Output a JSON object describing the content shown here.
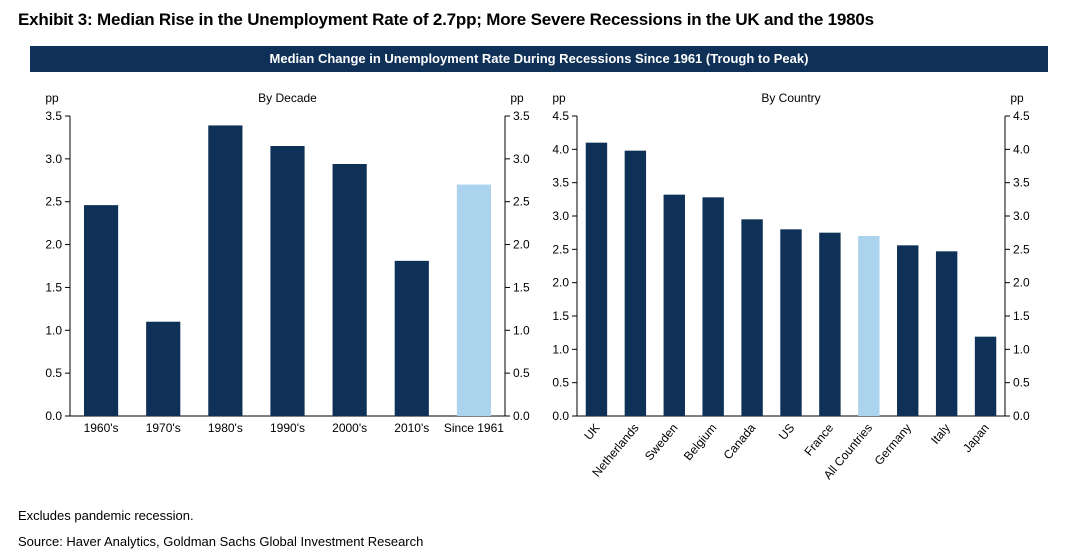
{
  "exhibit": {
    "title": "Exhibit 3: Median Rise in the Unemployment Rate of 2.7pp; More Severe Recessions in the UK and the 1980s",
    "banner": "Median Change in Unemployment Rate During Recessions Since 1961 (Trough to Peak)"
  },
  "colors": {
    "bar": "#0f3057",
    "highlight": "#acd3ee",
    "banner": "#0f3057"
  },
  "chart_data": [
    {
      "type": "bar",
      "title": "By Decade",
      "ylabel": "pp",
      "ylim": [
        0,
        3.5
      ],
      "yticks": [
        "0.0",
        "0.5",
        "1.0",
        "1.5",
        "2.0",
        "2.5",
        "3.0",
        "3.5"
      ],
      "categories": [
        "1960's",
        "1970's",
        "1980's",
        "1990's",
        "2000's",
        "2010's",
        "Since 1961"
      ],
      "values": [
        2.46,
        1.1,
        3.39,
        3.15,
        2.94,
        1.81,
        2.7
      ],
      "highlight": "Since 1961"
    },
    {
      "type": "bar",
      "title": "By Country",
      "ylabel": "pp",
      "ylim": [
        0,
        4.5
      ],
      "yticks": [
        "0.0",
        "0.5",
        "1.0",
        "1.5",
        "2.0",
        "2.5",
        "3.0",
        "3.5",
        "4.0",
        "4.5"
      ],
      "categories": [
        "UK",
        "Netherlands",
        "Sweden",
        "Belgium",
        "Canada",
        "US",
        "France",
        "All Countries",
        "Germany",
        "Italy",
        "Japan"
      ],
      "values": [
        4.1,
        3.98,
        3.32,
        3.28,
        2.95,
        2.8,
        2.75,
        2.7,
        2.56,
        2.47,
        1.19
      ],
      "highlight": "All Countries"
    }
  ],
  "footer": {
    "note": "Excludes pandemic recession.",
    "source": "Source: Haver Analytics, Goldman Sachs Global Investment Research"
  }
}
